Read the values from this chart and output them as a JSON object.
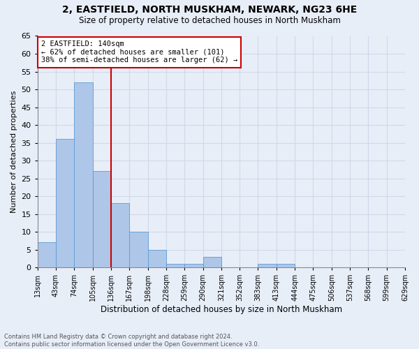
{
  "title_line1": "2, EASTFIELD, NORTH MUSKHAM, NEWARK, NG23 6HE",
  "title_line2": "Size of property relative to detached houses in North Muskham",
  "xlabel": "Distribution of detached houses by size in North Muskham",
  "ylabel": "Number of detached properties",
  "bin_labels": [
    "13sqm",
    "43sqm",
    "74sqm",
    "105sqm",
    "136sqm",
    "167sqm",
    "198sqm",
    "228sqm",
    "259sqm",
    "290sqm",
    "321sqm",
    "352sqm",
    "383sqm",
    "413sqm",
    "444sqm",
    "475sqm",
    "506sqm",
    "537sqm",
    "568sqm",
    "599sqm",
    "629sqm"
  ],
  "bar_values": [
    0,
    7,
    36,
    52,
    27,
    18,
    10,
    5,
    1,
    1,
    3,
    0,
    0,
    1,
    1,
    0,
    0,
    0,
    0,
    0,
    0
  ],
  "bar_color": "#aec6e8",
  "bar_edge_color": "#5b9bd5",
  "vline_color": "#cc0000",
  "annotation_text": "2 EASTFIELD: 140sqm\n← 62% of detached houses are smaller (101)\n38% of semi-detached houses are larger (62) →",
  "annotation_box_color": "#ffffff",
  "annotation_box_edge": "#cc0000",
  "ylim": [
    0,
    65
  ],
  "yticks": [
    0,
    5,
    10,
    15,
    20,
    25,
    30,
    35,
    40,
    45,
    50,
    55,
    60,
    65
  ],
  "grid_color": "#d0d8e8",
  "bg_color": "#e8eef8",
  "footer_line1": "Contains HM Land Registry data © Crown copyright and database right 2024.",
  "footer_line2": "Contains public sector information licensed under the Open Government Licence v3.0."
}
